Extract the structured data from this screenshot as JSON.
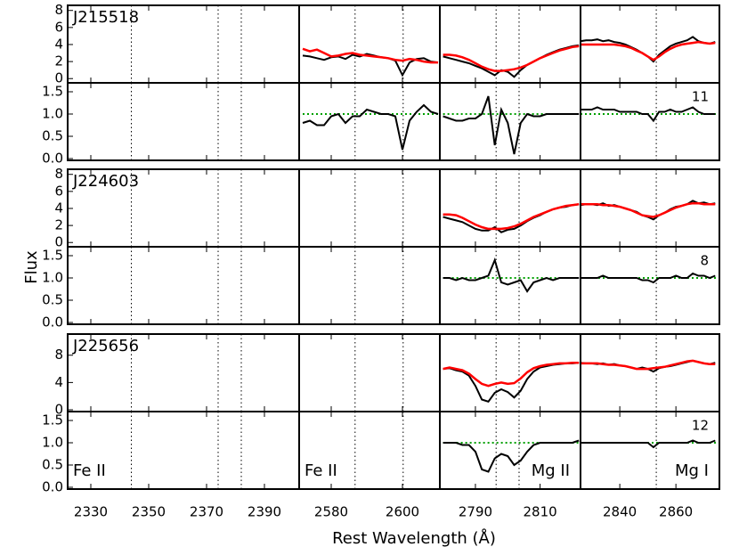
{
  "chart_data": {
    "type": "line",
    "xlabel": "Rest Wavelength (Å)",
    "ylabel": "Flux",
    "colors": {
      "flux": "#000000",
      "model": "#ff0000",
      "reference": "#00a000"
    },
    "reference": 1,
    "norm_ylim": [
      -0.04,
      1.7
    ],
    "norm_yticks": [
      {
        "value": 0,
        "label": "0.0"
      },
      0.5,
      {
        "value": 1,
        "label": "1.0"
      },
      1.5
    ],
    "columns": [
      {
        "label": "Fe II",
        "xlim": [
          2322,
          2402
        ],
        "xticks": [
          2330,
          2350,
          2370,
          2390
        ],
        "lines": [
          2344,
          2374,
          2382
        ]
      },
      {
        "label": "Fe II",
        "xlim": [
          2571,
          2610.5
        ],
        "xticks": [
          2580,
          2600
        ],
        "lines": [
          2586.7,
          2600.2
        ]
      },
      {
        "label": "Mg II",
        "xlim": [
          2779,
          2822.5
        ],
        "xticks": [
          2790,
          2810
        ],
        "lines": [
          2796.4,
          2803.5
        ]
      },
      {
        "label": "Mg I",
        "xlim": [
          2826,
          2875.5
        ],
        "xticks": [
          2840,
          2860
        ],
        "lines": [
          2853
        ]
      }
    ],
    "objects": [
      {
        "name": "J215518",
        "count": "11",
        "flux_ylim": [
          -0.5,
          8.6
        ],
        "flux_yticks": [
          0,
          2,
          4,
          6,
          8
        ],
        "panels": [
          null,
          {
            "x": [
              2572,
              2574,
              2576,
              2578,
              2580,
              2582,
              2584,
              2586,
              2588,
              2590,
              2592,
              2594,
              2596,
              2598,
              2600,
              2602,
              2604,
              2606,
              2608,
              2610
            ],
            "flux": [
              2.7,
              2.6,
              2.4,
              2.2,
              2.5,
              2.6,
              2.3,
              2.8,
              2.6,
              2.9,
              2.7,
              2.5,
              2.4,
              2.1,
              0.4,
              1.9,
              2.3,
              2.4,
              2.0,
              1.9
            ],
            "model": [
              3.5,
              3.2,
              3.4,
              3.0,
              2.6,
              2.7,
              2.9,
              3.0,
              2.8,
              2.7,
              2.6,
              2.5,
              2.4,
              2.2,
              2.1,
              2.3,
              2.2,
              2.0,
              1.9,
              1.9
            ],
            "norm": [
              0.8,
              0.85,
              0.75,
              0.75,
              0.95,
              1.0,
              0.8,
              0.95,
              0.95,
              1.1,
              1.05,
              1.0,
              1.0,
              0.95,
              0.2,
              0.85,
              1.05,
              1.2,
              1.05,
              1.0
            ]
          },
          {
            "x": [
              2780,
              2782,
              2784,
              2786,
              2788,
              2790,
              2792,
              2794,
              2796,
              2798,
              2800,
              2802,
              2804,
              2806,
              2808,
              2810,
              2812,
              2814,
              2816,
              2818,
              2820,
              2822
            ],
            "flux": [
              2.6,
              2.4,
              2.2,
              2.0,
              1.8,
              1.5,
              1.2,
              0.8,
              0.4,
              1.0,
              0.8,
              0.2,
              1.0,
              1.6,
              2.0,
              2.4,
              2.8,
              3.1,
              3.4,
              3.6,
              3.8,
              3.9
            ],
            "model": [
              2.8,
              2.8,
              2.7,
              2.5,
              2.2,
              1.8,
              1.4,
              1.1,
              0.9,
              0.9,
              1.0,
              1.1,
              1.3,
              1.6,
              2.0,
              2.4,
              2.7,
              3.0,
              3.3,
              3.5,
              3.7,
              3.8
            ],
            "norm": [
              0.95,
              0.9,
              0.85,
              0.85,
              0.9,
              0.9,
              1.0,
              1.4,
              0.3,
              1.1,
              0.8,
              0.1,
              0.8,
              1.0,
              0.95,
              0.95,
              1.0,
              1.0,
              1.0,
              1.0,
              1.0,
              1.0
            ]
          },
          {
            "x": [
              2826,
              2828,
              2830,
              2832,
              2834,
              2836,
              2838,
              2840,
              2842,
              2844,
              2846,
              2848,
              2850,
              2852,
              2854,
              2856,
              2858,
              2860,
              2862,
              2864,
              2866,
              2868,
              2870,
              2872,
              2874
            ],
            "flux": [
              4.4,
              4.5,
              4.5,
              4.6,
              4.4,
              4.5,
              4.3,
              4.2,
              4.0,
              3.7,
              3.4,
              3.0,
              2.6,
              2.0,
              2.8,
              3.3,
              3.8,
              4.1,
              4.3,
              4.5,
              4.9,
              4.4,
              4.2,
              4.1,
              4.3
            ],
            "model": [
              4.0,
              4.0,
              4.0,
              4.0,
              4.0,
              4.0,
              4.0,
              3.9,
              3.8,
              3.6,
              3.3,
              3.0,
              2.6,
              2.2,
              2.6,
              3.1,
              3.5,
              3.8,
              4.0,
              4.1,
              4.2,
              4.3,
              4.2,
              4.1,
              4.2
            ],
            "norm": [
              1.1,
              1.1,
              1.1,
              1.15,
              1.1,
              1.1,
              1.1,
              1.05,
              1.05,
              1.05,
              1.05,
              1.0,
              1.0,
              0.85,
              1.05,
              1.05,
              1.1,
              1.05,
              1.05,
              1.1,
              1.15,
              1.05,
              1.0,
              1.0,
              1.0
            ]
          }
        ]
      },
      {
        "name": "J224603",
        "count": "8",
        "flux_ylim": [
          -0.5,
          8.6
        ],
        "flux_yticks": [
          0,
          2,
          4,
          6,
          8
        ],
        "panels": [
          null,
          null,
          {
            "x": [
              2780,
              2782,
              2784,
              2786,
              2788,
              2790,
              2792,
              2794,
              2796,
              2798,
              2800,
              2802,
              2804,
              2806,
              2808,
              2810,
              2812,
              2814,
              2816,
              2818,
              2820,
              2822
            ],
            "flux": [
              3.0,
              2.8,
              2.6,
              2.4,
              2.0,
              1.6,
              1.4,
              1.4,
              1.8,
              1.2,
              1.5,
              1.6,
              2.0,
              2.5,
              2.9,
              3.2,
              3.6,
              3.9,
              4.1,
              4.2,
              4.4,
              4.5
            ],
            "model": [
              3.3,
              3.3,
              3.2,
              2.9,
              2.5,
              2.1,
              1.8,
              1.6,
              1.6,
              1.6,
              1.7,
              1.9,
              2.2,
              2.6,
              3.0,
              3.3,
              3.6,
              3.9,
              4.1,
              4.3,
              4.4,
              4.5
            ],
            "norm": [
              1.0,
              1.0,
              0.95,
              1.0,
              0.95,
              0.95,
              1.0,
              1.05,
              1.4,
              0.9,
              0.85,
              0.9,
              0.95,
              0.7,
              0.9,
              0.95,
              1.0,
              0.95,
              1.0,
              1.0,
              1.0,
              1.0
            ]
          },
          {
            "x": [
              2826,
              2828,
              2830,
              2832,
              2834,
              2836,
              2838,
              2840,
              2842,
              2844,
              2846,
              2848,
              2850,
              2852,
              2854,
              2856,
              2858,
              2860,
              2862,
              2864,
              2866,
              2868,
              2870,
              2872,
              2874
            ],
            "flux": [
              4.4,
              4.5,
              4.5,
              4.4,
              4.6,
              4.3,
              4.4,
              4.2,
              4.0,
              3.8,
              3.6,
              3.2,
              3.0,
              2.7,
              3.2,
              3.5,
              3.9,
              4.2,
              4.3,
              4.5,
              4.9,
              4.6,
              4.7,
              4.5,
              4.6
            ],
            "model": [
              4.5,
              4.5,
              4.5,
              4.5,
              4.4,
              4.4,
              4.3,
              4.2,
              4.0,
              3.8,
              3.5,
              3.2,
              3.1,
              3.0,
              3.2,
              3.5,
              3.8,
              4.1,
              4.3,
              4.5,
              4.6,
              4.6,
              4.5,
              4.5,
              4.5
            ],
            "norm": [
              1.0,
              1.0,
              1.0,
              1.0,
              1.05,
              1.0,
              1.0,
              1.0,
              1.0,
              1.0,
              1.0,
              0.95,
              0.95,
              0.9,
              1.0,
              1.0,
              1.0,
              1.05,
              1.0,
              1.0,
              1.1,
              1.05,
              1.05,
              1.0,
              1.05
            ]
          }
        ]
      },
      {
        "name": "J225656",
        "count": "12",
        "flux_ylim": [
          -0.26,
          11.1
        ],
        "flux_yticks": [
          0,
          4,
          8
        ],
        "panels": [
          null,
          null,
          {
            "x": [
              2780,
              2782,
              2784,
              2786,
              2788,
              2790,
              2792,
              2794,
              2796,
              2798,
              2800,
              2802,
              2804,
              2806,
              2808,
              2810,
              2812,
              2814,
              2816,
              2818,
              2820,
              2822
            ],
            "flux": [
              6.0,
              6.1,
              5.8,
              5.6,
              5.0,
              3.5,
              1.5,
              1.2,
              2.5,
              3.0,
              2.6,
              1.8,
              2.8,
              4.5,
              5.6,
              6.2,
              6.4,
              6.6,
              6.7,
              6.8,
              6.8,
              6.9
            ],
            "model": [
              6.0,
              6.2,
              6.0,
              5.8,
              5.3,
              4.5,
              3.8,
              3.5,
              3.8,
              4.0,
              3.8,
              3.9,
              4.6,
              5.5,
              6.1,
              6.4,
              6.6,
              6.7,
              6.8,
              6.8,
              6.9,
              6.9
            ],
            "norm": [
              1.0,
              1.0,
              1.0,
              0.95,
              0.95,
              0.8,
              0.4,
              0.35,
              0.65,
              0.75,
              0.7,
              0.5,
              0.6,
              0.8,
              0.95,
              1.0,
              1.0,
              1.0,
              1.0,
              1.0,
              1.0,
              1.05
            ]
          },
          {
            "x": [
              2826,
              2828,
              2830,
              2832,
              2834,
              2836,
              2838,
              2840,
              2842,
              2844,
              2846,
              2848,
              2850,
              2852,
              2854,
              2856,
              2858,
              2860,
              2862,
              2864,
              2866,
              2868,
              2870,
              2872,
              2874
            ],
            "flux": [
              6.9,
              6.8,
              6.8,
              6.7,
              6.8,
              6.6,
              6.7,
              6.5,
              6.4,
              6.2,
              6.0,
              6.2,
              6.0,
              5.6,
              6.1,
              6.3,
              6.4,
              6.6,
              6.8,
              7.0,
              7.2,
              7.0,
              6.8,
              6.7,
              6.9
            ],
            "model": [
              6.8,
              6.8,
              6.8,
              6.8,
              6.7,
              6.6,
              6.6,
              6.5,
              6.4,
              6.2,
              6.0,
              6.0,
              6.0,
              6.1,
              6.2,
              6.3,
              6.5,
              6.7,
              6.9,
              7.1,
              7.2,
              7.0,
              6.8,
              6.7,
              6.7
            ],
            "norm": [
              1.0,
              1.0,
              1.0,
              1.0,
              1.0,
              1.0,
              1.0,
              1.0,
              1.0,
              1.0,
              1.0,
              1.0,
              1.0,
              0.9,
              1.0,
              1.0,
              1.0,
              1.0,
              1.0,
              1.0,
              1.05,
              1.0,
              1.0,
              1.0,
              1.05
            ]
          }
        ]
      }
    ]
  }
}
